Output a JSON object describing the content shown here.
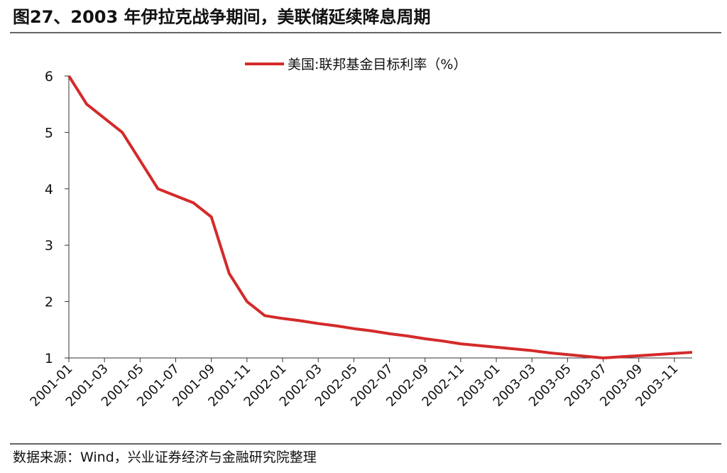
{
  "chart_data": {
    "type": "line",
    "title": "图27、2003 年伊拉克战争期间，美联储延续降息周期",
    "source": "数据来源：Wind，兴业证券经济与金融研究院整理",
    "categories": [
      "2001-01",
      null,
      "2001-03",
      null,
      "2001-05",
      null,
      "2001-07",
      null,
      "2001-09",
      null,
      "2001-11",
      null,
      "2002-01",
      null,
      "2002-03",
      null,
      "2002-05",
      null,
      "2002-07",
      null,
      "2002-09",
      null,
      "2002-11",
      null,
      "2003-01",
      null,
      "2003-03",
      null,
      "2003-05",
      null,
      "2003-07",
      null,
      "2003-09",
      null,
      "2003-11",
      null
    ],
    "series": [
      {
        "name": "美国:联邦基金目标利率（%）",
        "color": "#d42a2a",
        "values": [
          6,
          5.5,
          5.25,
          5.0,
          4.5,
          4.0,
          3.875,
          3.75,
          3.5,
          2.5,
          2.0,
          1.75,
          1.7,
          1.66,
          1.61,
          1.57,
          1.52,
          1.48,
          1.43,
          1.39,
          1.34,
          1.3,
          1.25,
          1.22,
          1.19,
          1.16,
          1.13,
          1.09,
          1.06,
          1.03,
          1.0,
          1.02,
          1.04,
          1.06,
          1.08,
          1.1
        ]
      }
    ],
    "ylim": [
      1,
      6
    ],
    "yticks": [
      1,
      2,
      3,
      4,
      5,
      6
    ],
    "legend": "top"
  }
}
